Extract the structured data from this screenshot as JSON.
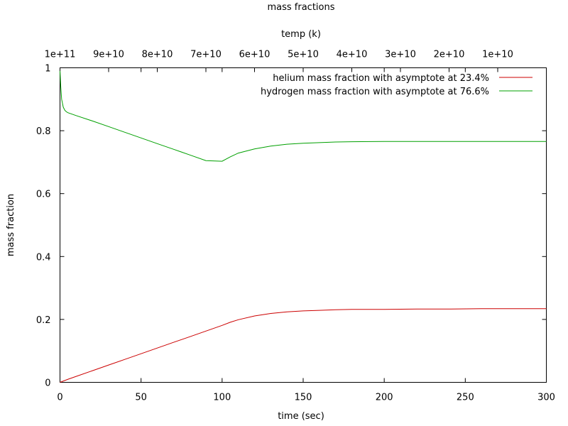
{
  "chart_data": {
    "type": "line",
    "title": "mass fractions",
    "xlabel": "time (sec)",
    "ylabel": "mass fraction",
    "x2label": "temp (k)",
    "xlim": [
      0,
      300
    ],
    "ylim": [
      0,
      1
    ],
    "x_ticks": [
      "0",
      "50",
      "100",
      "150",
      "200",
      "250",
      "300"
    ],
    "y_ticks": [
      "0",
      "0.2",
      "0.4",
      "0.6",
      "0.8",
      "1"
    ],
    "x2_ticks": [
      "1e+11",
      "9e+10",
      "8e+10",
      "7e+10",
      "6e+10",
      "5e+10",
      "4e+10",
      "3e+10",
      "2e+10",
      "1e+10"
    ],
    "grid": false,
    "legend_position": "top-right",
    "series": [
      {
        "name": "helium mass fraction with asymptote at 23.4%",
        "color": "#cc0000",
        "x": [
          0,
          1,
          5,
          10,
          20,
          30,
          40,
          50,
          60,
          70,
          80,
          90,
          100,
          105,
          110,
          120,
          130,
          140,
          150,
          160,
          170,
          180,
          200,
          220,
          240,
          260,
          280,
          300
        ],
        "y": [
          0.0,
          0.002,
          0.01,
          0.019,
          0.037,
          0.055,
          0.073,
          0.091,
          0.109,
          0.127,
          0.145,
          0.163,
          0.181,
          0.191,
          0.199,
          0.211,
          0.219,
          0.224,
          0.227,
          0.229,
          0.231,
          0.232,
          0.232,
          0.233,
          0.233,
          0.234,
          0.234,
          0.234
        ]
      },
      {
        "name": "hydrogen mass fraction with asymptote at 76.6%",
        "color": "#00a000",
        "x": [
          0,
          0.5,
          1,
          2,
          3,
          4,
          5,
          10,
          20,
          30,
          40,
          50,
          60,
          70,
          80,
          90,
          100,
          105,
          110,
          120,
          130,
          140,
          150,
          160,
          170,
          180,
          200,
          220,
          240,
          260,
          280,
          300
        ],
        "y": [
          0.99,
          0.94,
          0.9,
          0.875,
          0.865,
          0.86,
          0.857,
          0.848,
          0.831,
          0.813,
          0.795,
          0.777,
          0.759,
          0.741,
          0.723,
          0.705,
          0.703,
          0.717,
          0.729,
          0.742,
          0.751,
          0.757,
          0.76,
          0.762,
          0.764,
          0.765,
          0.766,
          0.766,
          0.766,
          0.766,
          0.766,
          0.766
        ]
      }
    ]
  }
}
